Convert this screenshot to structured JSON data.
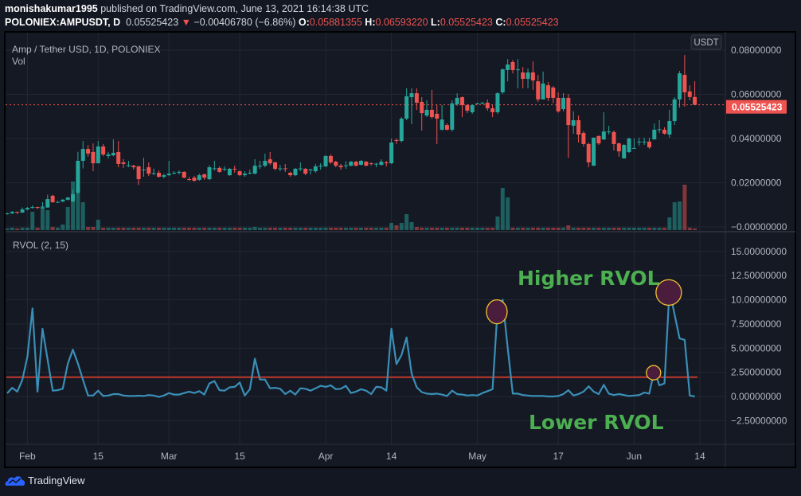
{
  "header": {
    "author": "monishakumar1995",
    "published": "published on TradingView.com, June 13, 2021 16:14:38 UTC",
    "symbol": "POLONIEX:AMPUSDT, D",
    "last": "0.05525423",
    "change": "−0.00406780 (−6.86%)",
    "o_label": "O:",
    "o": "0.05881355",
    "h_label": "H:",
    "h": "0.06593220",
    "l_label": "L:",
    "l": "0.05525423",
    "c_label": "C:",
    "c": "0.05525423",
    "direction_icon": "triangle-down-icon"
  },
  "legend": {
    "series_title": "Amp / Tether USD, 1D, POLONIEX",
    "volume_title": "Vol",
    "indicator_title": "RVOL (2, 15)"
  },
  "price_axis": {
    "currency_badge": "USDT",
    "ticks": [
      {
        "value": 0.08,
        "label": "0.08000000"
      },
      {
        "value": 0.06,
        "label": "0.06000000"
      },
      {
        "value": 0.04,
        "label": "0.04000000"
      },
      {
        "value": 0.02,
        "label": "0.02000000"
      },
      {
        "value": 0.0,
        "label": "−0.00000000"
      }
    ],
    "last_price": 0.05525423,
    "last_price_label": "0.05525423"
  },
  "rvol_axis": {
    "ticks": [
      {
        "value": 15,
        "label": "15.00000000"
      },
      {
        "value": 12.5,
        "label": "12.50000000"
      },
      {
        "value": 10,
        "label": "10.00000000"
      },
      {
        "value": 7.5,
        "label": "7.50000000"
      },
      {
        "value": 5,
        "label": "5.00000000"
      },
      {
        "value": 2.5,
        "label": "2.50000000"
      },
      {
        "value": 0,
        "label": "0.00000000"
      },
      {
        "value": -2.5,
        "label": "−2.50000000"
      }
    ]
  },
  "time_axis": {
    "ticks": [
      {
        "date": "2021-02-01",
        "label": "Feb"
      },
      {
        "date": "2021-02-15",
        "label": "15"
      },
      {
        "date": "2021-03-01",
        "label": "Mar"
      },
      {
        "date": "2021-03-15",
        "label": "15"
      },
      {
        "date": "2021-04-01",
        "label": "Apr"
      },
      {
        "date": "2021-04-14",
        "label": "14"
      },
      {
        "date": "2021-05-01",
        "label": "May"
      },
      {
        "date": "2021-05-17",
        "label": "17"
      },
      {
        "date": "2021-06-01",
        "label": "Jun"
      },
      {
        "date": "2021-06-14",
        "label": "14"
      }
    ]
  },
  "annotations": {
    "higher": "Higher RVOL",
    "lower": "Lower RVOL",
    "text_color": "#4caf50",
    "circle_stroke": "#f2c12e",
    "circle_fill": "#4a1d3d",
    "highlighted_dates": [
      "2021-05-05",
      "2021-06-05",
      "2021-06-08"
    ]
  },
  "colors": {
    "up": "#26a69a",
    "down": "#ef5350",
    "rvol_line": "#3a8fb7",
    "threshold": "#c0392b"
  },
  "branding": {
    "name": "TradingView",
    "icon": "tradingview-cloud-icon"
  },
  "chart_data": {
    "type": "candlestick",
    "interval": "1D",
    "start_date": "2021-01-28",
    "ylim": [
      -0.003,
      0.087
    ],
    "candles_ohlc": [
      [
        0.0058,
        0.0064,
        0.0056,
        0.0061
      ],
      [
        0.0061,
        0.0072,
        0.0059,
        0.0068
      ],
      [
        0.0068,
        0.007,
        0.0058,
        0.0065
      ],
      [
        0.0065,
        0.0088,
        0.0063,
        0.0079
      ],
      [
        0.0079,
        0.009,
        0.0076,
        0.0086
      ],
      [
        0.0086,
        0.0097,
        0.0083,
        0.009
      ],
      [
        0.009,
        0.0092,
        0.0081,
        0.0086
      ],
      [
        0.0086,
        0.0112,
        0.0083,
        0.0088
      ],
      [
        0.0088,
        0.0146,
        0.0086,
        0.0126
      ],
      [
        0.0141,
        0.0146,
        0.0108,
        0.0112
      ],
      [
        0.0112,
        0.0118,
        0.011,
        0.0113
      ],
      [
        0.0115,
        0.0126,
        0.0112,
        0.0123
      ],
      [
        0.0123,
        0.0136,
        0.012,
        0.0133
      ],
      [
        0.0115,
        0.0168,
        0.0112,
        0.0148
      ],
      [
        0.0155,
        0.034,
        0.0148,
        0.0299
      ],
      [
        0.0299,
        0.0389,
        0.0265,
        0.0353
      ],
      [
        0.0353,
        0.037,
        0.0318,
        0.0332
      ],
      [
        0.0339,
        0.0378,
        0.0252,
        0.0288
      ],
      [
        0.0288,
        0.0389,
        0.0288,
        0.0364
      ],
      [
        0.0364,
        0.0375,
        0.032,
        0.0328
      ],
      [
        0.0321,
        0.0339,
        0.031,
        0.0328
      ],
      [
        0.0324,
        0.0396,
        0.032,
        0.0335
      ],
      [
        0.0339,
        0.0389,
        0.027,
        0.0285
      ],
      [
        0.0292,
        0.0307,
        0.0267,
        0.0285
      ],
      [
        0.0277,
        0.0299,
        0.027,
        0.0279
      ],
      [
        0.0277,
        0.0281,
        0.026,
        0.027
      ],
      [
        0.0274,
        0.0277,
        0.019,
        0.0216
      ],
      [
        0.0259,
        0.0313,
        0.0227,
        0.026
      ],
      [
        0.027,
        0.0292,
        0.023,
        0.0241
      ],
      [
        0.0241,
        0.0264,
        0.0234,
        0.0243
      ],
      [
        0.0245,
        0.0256,
        0.0223,
        0.0227
      ],
      [
        0.0227,
        0.024,
        0.022,
        0.0234
      ],
      [
        0.0234,
        0.0299,
        0.023,
        0.0241
      ],
      [
        0.0245,
        0.0252,
        0.0238,
        0.0245
      ],
      [
        0.0245,
        0.0256,
        0.0238,
        0.0249
      ],
      [
        0.0249,
        0.0252,
        0.022,
        0.0223
      ],
      [
        0.0216,
        0.0227,
        0.0209,
        0.0213
      ],
      [
        0.0223,
        0.0231,
        0.0205,
        0.0209
      ],
      [
        0.0213,
        0.0241,
        0.0209,
        0.0234
      ],
      [
        0.0238,
        0.0241,
        0.0213,
        0.0223
      ],
      [
        0.0216,
        0.0279,
        0.0212,
        0.027
      ],
      [
        0.0263,
        0.0299,
        0.0256,
        0.0265
      ],
      [
        0.0267,
        0.0274,
        0.0245,
        0.0249
      ],
      [
        0.0263,
        0.0274,
        0.0252,
        0.0263
      ],
      [
        0.0234,
        0.0267,
        0.0231,
        0.0263
      ],
      [
        0.0263,
        0.0277,
        0.0245,
        0.0262
      ],
      [
        0.0252,
        0.0256,
        0.0231,
        0.0234
      ],
      [
        0.0234,
        0.0252,
        0.0227,
        0.0241
      ],
      [
        0.0245,
        0.0259,
        0.0238,
        0.0245
      ],
      [
        0.0241,
        0.0306,
        0.0238,
        0.0277
      ],
      [
        0.0274,
        0.0299,
        0.0263,
        0.0277
      ],
      [
        0.0277,
        0.0332,
        0.027,
        0.0299
      ],
      [
        0.0306,
        0.0339,
        0.0281,
        0.0288
      ],
      [
        0.0292,
        0.0295,
        0.0256,
        0.0263
      ],
      [
        0.0263,
        0.0281,
        0.0252,
        0.0265
      ],
      [
        0.0265,
        0.0285,
        0.0249,
        0.0263
      ],
      [
        0.0245,
        0.0249,
        0.0227,
        0.0234
      ],
      [
        0.0234,
        0.0267,
        0.023,
        0.0263
      ],
      [
        0.0263,
        0.0292,
        0.0252,
        0.0265
      ],
      [
        0.0263,
        0.0267,
        0.0234,
        0.0241
      ],
      [
        0.0256,
        0.0263,
        0.0238,
        0.026
      ],
      [
        0.0252,
        0.0285,
        0.0245,
        0.0274
      ],
      [
        0.0274,
        0.0288,
        0.0259,
        0.0277
      ],
      [
        0.0274,
        0.0324,
        0.027,
        0.0321
      ],
      [
        0.0321,
        0.0328,
        0.0285,
        0.0292
      ],
      [
        0.0295,
        0.0299,
        0.027,
        0.0277
      ],
      [
        0.0277,
        0.0285,
        0.0259,
        0.027
      ],
      [
        0.0277,
        0.0297,
        0.0263,
        0.0279
      ],
      [
        0.0277,
        0.0299,
        0.0274,
        0.0295
      ],
      [
        0.0295,
        0.0299,
        0.0274,
        0.0277
      ],
      [
        0.0281,
        0.0302,
        0.0279,
        0.0299
      ],
      [
        0.0295,
        0.0299,
        0.0274,
        0.0277
      ],
      [
        0.0288,
        0.0292,
        0.0277,
        0.0286
      ],
      [
        0.0284,
        0.029,
        0.027,
        0.0286
      ],
      [
        0.0281,
        0.0306,
        0.0277,
        0.0295
      ],
      [
        0.0292,
        0.0299,
        0.0274,
        0.0288
      ],
      [
        0.0288,
        0.04,
        0.0285,
        0.0382
      ],
      [
        0.0393,
        0.04,
        0.0375,
        0.0389
      ],
      [
        0.0389,
        0.0497,
        0.0382,
        0.049
      ],
      [
        0.049,
        0.0627,
        0.0483,
        0.0591
      ],
      [
        0.0587,
        0.0627,
        0.0465,
        0.0605
      ],
      [
        0.0605,
        0.0627,
        0.053,
        0.0562
      ],
      [
        0.0566,
        0.0587,
        0.0436,
        0.0515
      ],
      [
        0.0504,
        0.0573,
        0.0497,
        0.053
      ],
      [
        0.053,
        0.062,
        0.049,
        0.0497
      ],
      [
        0.0512,
        0.0552,
        0.0375,
        0.049
      ],
      [
        0.044,
        0.0552,
        0.0436,
        0.0486
      ],
      [
        0.0461,
        0.0468,
        0.0436,
        0.044
      ],
      [
        0.044,
        0.0573,
        0.0432,
        0.0559
      ],
      [
        0.0555,
        0.0605,
        0.0548,
        0.0584
      ],
      [
        0.0587,
        0.0591,
        0.0497,
        0.0551
      ],
      [
        0.0551,
        0.0555,
        0.0515,
        0.0526
      ],
      [
        0.0519,
        0.0555,
        0.0512,
        0.0551
      ],
      [
        0.0559,
        0.0562,
        0.0555,
        0.0559
      ],
      [
        0.0559,
        0.0566,
        0.0555,
        0.0562
      ],
      [
        0.0562,
        0.0577,
        0.0526,
        0.0537
      ],
      [
        0.0537,
        0.0555,
        0.0497,
        0.0519
      ],
      [
        0.0519,
        0.0609,
        0.0512,
        0.0605
      ],
      [
        0.0609,
        0.0717,
        0.0602,
        0.0713
      ],
      [
        0.071,
        0.076,
        0.0659,
        0.0735
      ],
      [
        0.0746,
        0.0756,
        0.0695,
        0.071
      ],
      [
        0.0713,
        0.076,
        0.0627,
        0.0713
      ],
      [
        0.0699,
        0.0724,
        0.0627,
        0.067
      ],
      [
        0.067,
        0.0717,
        0.0627,
        0.0699
      ],
      [
        0.0699,
        0.0749,
        0.062,
        0.0663
      ],
      [
        0.0659,
        0.0688,
        0.0566,
        0.0577
      ],
      [
        0.0577,
        0.0703,
        0.058,
        0.0649
      ],
      [
        0.0641,
        0.0656,
        0.057,
        0.0584
      ],
      [
        0.0631,
        0.0638,
        0.056,
        0.0584
      ],
      [
        0.0584,
        0.0609,
        0.0517,
        0.0523
      ],
      [
        0.0533,
        0.0605,
        0.0523,
        0.0584
      ],
      [
        0.0584,
        0.0602,
        0.0313,
        0.0461
      ],
      [
        0.0458,
        0.0523,
        0.0422,
        0.0483
      ],
      [
        0.0483,
        0.0504,
        0.0382,
        0.0418
      ],
      [
        0.0425,
        0.0433,
        0.0364,
        0.0375
      ],
      [
        0.0375,
        0.0382,
        0.027,
        0.0292
      ],
      [
        0.0277,
        0.0404,
        0.0277,
        0.0404
      ],
      [
        0.0411,
        0.0415,
        0.0371,
        0.0378
      ],
      [
        0.0396,
        0.0519,
        0.0393,
        0.0432
      ],
      [
        0.0432,
        0.0458,
        0.0418,
        0.0432
      ],
      [
        0.0429,
        0.0437,
        0.0346,
        0.0375
      ],
      [
        0.0378,
        0.0382,
        0.0317,
        0.0342
      ],
      [
        0.031,
        0.0375,
        0.031,
        0.0371
      ],
      [
        0.0339,
        0.0404,
        0.0335,
        0.04
      ],
      [
        0.0357,
        0.04,
        0.0357,
        0.0357
      ],
      [
        0.0386,
        0.0404,
        0.0368,
        0.0386
      ],
      [
        0.0386,
        0.0404,
        0.0371,
        0.0386
      ],
      [
        0.0386,
        0.0404,
        0.0353,
        0.036
      ],
      [
        0.0396,
        0.0468,
        0.0396,
        0.044
      ],
      [
        0.044,
        0.0483,
        0.0425,
        0.0442
      ],
      [
        0.044,
        0.0451,
        0.0418,
        0.0422
      ],
      [
        0.0418,
        0.053,
        0.0404,
        0.0479
      ],
      [
        0.0479,
        0.0587,
        0.0461,
        0.0577
      ],
      [
        0.0577,
        0.0706,
        0.054,
        0.0695
      ],
      [
        0.0688,
        0.0778,
        0.0544,
        0.0609
      ],
      [
        0.0613,
        0.0641,
        0.0573,
        0.0588
      ],
      [
        0.05881355,
        0.0659322,
        0.05525423,
        0.05525423
      ]
    ],
    "volume_relative": [
      2,
      3,
      2,
      3,
      3,
      23,
      3,
      30,
      25,
      4,
      3,
      7,
      29,
      61,
      58,
      35,
      4,
      4,
      13,
      3,
      3,
      3,
      3,
      3,
      3,
      3,
      3,
      3,
      3,
      3,
      3,
      3,
      3,
      3,
      3,
      3,
      3,
      3,
      3,
      3,
      3,
      3,
      3,
      3,
      3,
      3,
      3,
      3,
      3,
      4,
      3,
      3,
      3,
      3,
      3,
      3,
      3,
      3,
      3,
      3,
      3,
      3,
      3,
      3,
      3,
      3,
      3,
      3,
      3,
      3,
      3,
      3,
      3,
      3,
      3,
      3,
      9,
      6,
      9,
      20,
      10,
      4,
      3,
      3,
      3,
      3,
      3,
      3,
      3,
      3,
      3,
      3,
      3,
      3,
      3,
      3,
      3,
      17,
      53,
      41,
      3,
      3,
      3,
      3,
      3,
      3,
      3,
      3,
      3,
      3,
      3,
      6,
      3,
      3,
      3,
      3,
      3,
      3,
      3,
      3,
      3,
      3,
      3,
      3,
      3,
      3,
      3,
      3,
      3,
      3,
      3,
      16,
      35,
      36,
      57,
      3,
      2
    ],
    "rvol": {
      "title": "RVOL (2, 15)",
      "threshold": 2,
      "ylim": [
        -3.3,
        16.5
      ],
      "values": [
        0.33,
        0.9,
        0.5,
        1.7,
        4.1,
        9.1,
        0.5,
        7.0,
        3.8,
        0.6,
        0.65,
        0.8,
        3.4,
        4.85,
        3.4,
        1.7,
        0.1,
        0.1,
        0.6,
        0.05,
        0.1,
        0.25,
        0.25,
        0.1,
        0.05,
        0.05,
        0.08,
        0.05,
        0.15,
        0.1,
        -0.05,
        0.1,
        0.35,
        0.2,
        0.2,
        0.35,
        0.5,
        0.35,
        0.55,
        0.2,
        1.35,
        1.6,
        0.65,
        0.6,
        0.95,
        1.0,
        1.45,
        0.1,
        0.75,
        3.9,
        1.75,
        1.75,
        0.85,
        0.9,
        0.8,
        0.25,
        0.6,
        0.2,
        0.85,
        0.8,
        0.6,
        0.85,
        1.1,
        1.0,
        1.15,
        0.75,
        0.8,
        1.1,
        0.35,
        0.5,
        0.75,
        0.6,
        0.25,
        1.0,
        0.95,
        0.6,
        7.0,
        3.35,
        4.3,
        6.1,
        2.35,
        0.95,
        0.45,
        0.3,
        0.25,
        0.3,
        0.2,
        0.05,
        0.6,
        0.25,
        0.2,
        0.1,
        0.15,
        0.1,
        0.35,
        0.55,
        0.75,
        9.0,
        10.0,
        5.05,
        0.3,
        0.3,
        0.15,
        0.1,
        0.05,
        0.05,
        0.05,
        0.0,
        0.0,
        0.05,
        0.25,
        0.65,
        0.1,
        0.25,
        0.5,
        1.05,
        0.5,
        0.25,
        1.2,
        0.3,
        0.15,
        0.25,
        0.15,
        0.05,
        0.1,
        0.15,
        0.4,
        0.3,
        2.7,
        1.15,
        1.35,
        11.0,
        8.5,
        6.0,
        5.85,
        0.1,
        0.0
      ]
    }
  }
}
